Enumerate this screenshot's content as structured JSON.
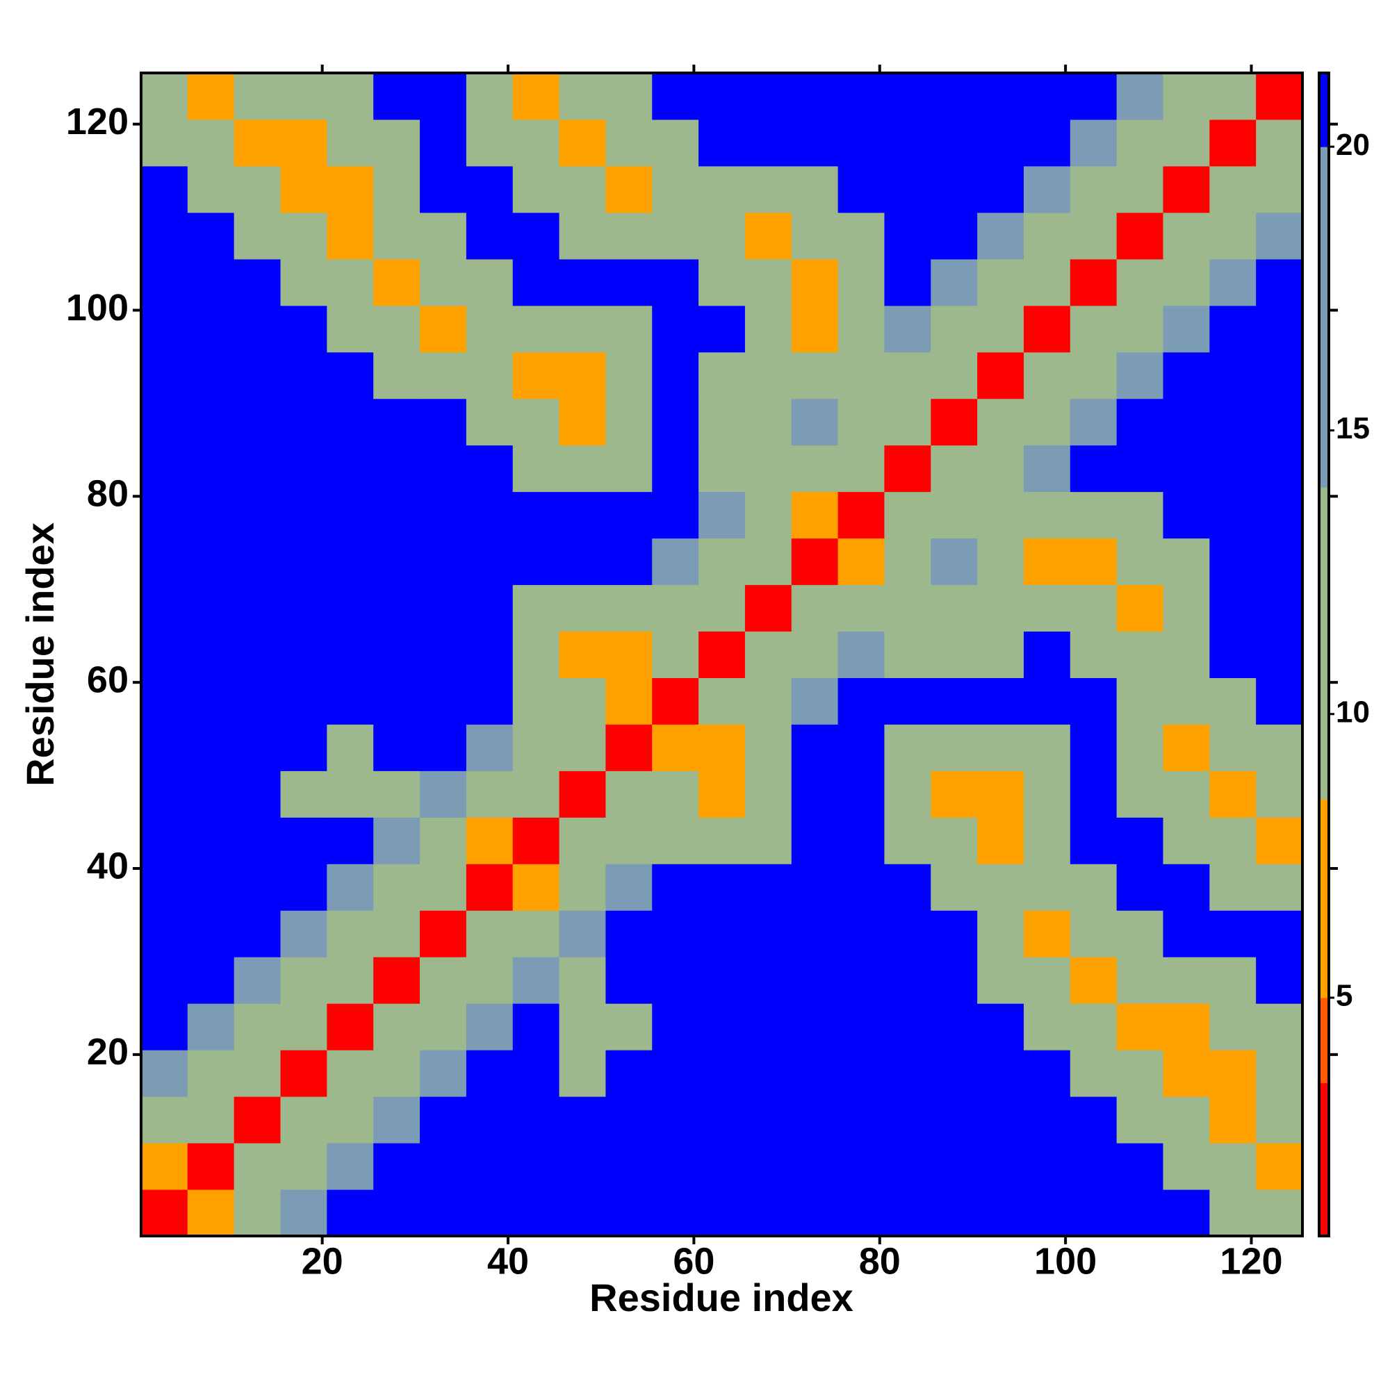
{
  "chart_data": {
    "type": "heatmap",
    "xlabel": "Residue index",
    "ylabel": "Residue index",
    "bins": [
      0.5,
      5.5,
      10.5,
      15.5,
      20.5,
      25.5,
      30.5,
      35.5,
      40.5,
      45.5,
      50.5,
      55.5,
      60.5,
      65.5,
      70.5,
      75.5,
      80.5,
      85.5,
      90.5,
      95.5,
      100.5,
      105.5,
      110.5,
      115.5,
      120.5,
      125.5
    ],
    "xlim": [
      0.5,
      125.5
    ],
    "ylim": [
      0.5,
      125.5
    ],
    "xticks": [
      20,
      40,
      60,
      80,
      100,
      120
    ],
    "yticks": [
      20,
      40,
      60,
      80,
      100,
      120
    ],
    "clim": [
      0.8,
      21.3
    ],
    "cticks": [
      5,
      10,
      15,
      20
    ],
    "color_stops": [
      {
        "value": 0.8,
        "color": "#ff0000"
      },
      {
        "value": 3.5,
        "color": "#ff5a00"
      },
      {
        "value": 5,
        "color": "#ffa200"
      },
      {
        "value": 8.5,
        "color": "#9db88c"
      },
      {
        "value": 14,
        "color": "#7c9bb4"
      },
      {
        "value": 20,
        "color": "#0000ff"
      }
    ],
    "values": [
      [
        2,
        6,
        13,
        17,
        21,
        21,
        21,
        21,
        21,
        21,
        21,
        21,
        21,
        21,
        21,
        21,
        21,
        21,
        21,
        21,
        21,
        21,
        21,
        12,
        12
      ],
      [
        6,
        2,
        9,
        13,
        17,
        21,
        21,
        21,
        21,
        21,
        21,
        21,
        21,
        21,
        21,
        21,
        21,
        21,
        21,
        21,
        21,
        21,
        12,
        12,
        6
      ],
      [
        13,
        9,
        2,
        9,
        13,
        17,
        21,
        21,
        21,
        21,
        21,
        21,
        21,
        21,
        21,
        21,
        21,
        21,
        21,
        21,
        21,
        12,
        12,
        6,
        12
      ],
      [
        17,
        13,
        9,
        2,
        9,
        13,
        17,
        21,
        21,
        13,
        21,
        21,
        21,
        21,
        21,
        21,
        21,
        21,
        21,
        21,
        12,
        12,
        6,
        6,
        12
      ],
      [
        21,
        17,
        13,
        9,
        2,
        9,
        13,
        17,
        21,
        13,
        13,
        21,
        21,
        21,
        21,
        21,
        21,
        21,
        21,
        12,
        12,
        6,
        6,
        12,
        12
      ],
      [
        21,
        21,
        17,
        13,
        9,
        2,
        9,
        13,
        17,
        13,
        21,
        21,
        21,
        21,
        21,
        21,
        21,
        21,
        12,
        12,
        6,
        12,
        12,
        12,
        21
      ],
      [
        21,
        21,
        21,
        17,
        13,
        9,
        2,
        9,
        13,
        17,
        21,
        21,
        21,
        21,
        21,
        21,
        21,
        21,
        12,
        6,
        12,
        12,
        21,
        21,
        21
      ],
      [
        21,
        21,
        21,
        21,
        17,
        13,
        9,
        2,
        6,
        13,
        17,
        21,
        21,
        21,
        21,
        21,
        21,
        12,
        12,
        12,
        12,
        21,
        21,
        12,
        12
      ],
      [
        21,
        21,
        21,
        21,
        21,
        17,
        13,
        6,
        2,
        9,
        13,
        12,
        12,
        12,
        21,
        21,
        12,
        12,
        6,
        12,
        21,
        21,
        12,
        12,
        6
      ],
      [
        21,
        21,
        21,
        13,
        13,
        13,
        17,
        13,
        9,
        2,
        9,
        13,
        6,
        12,
        21,
        21,
        12,
        6,
        6,
        12,
        21,
        12,
        12,
        6,
        12
      ],
      [
        21,
        21,
        21,
        21,
        13,
        21,
        21,
        17,
        13,
        9,
        2,
        6,
        6,
        12,
        21,
        21,
        12,
        12,
        12,
        12,
        21,
        12,
        6,
        12,
        12
      ],
      [
        21,
        21,
        21,
        21,
        21,
        21,
        21,
        21,
        12,
        13,
        6,
        2,
        9,
        13,
        17,
        21,
        21,
        21,
        21,
        21,
        21,
        12,
        12,
        12,
        21
      ],
      [
        21,
        21,
        21,
        21,
        21,
        21,
        21,
        21,
        12,
        6,
        6,
        9,
        2,
        9,
        13,
        17,
        12,
        12,
        12,
        21,
        12,
        12,
        12,
        21,
        21
      ],
      [
        21,
        21,
        21,
        21,
        21,
        21,
        21,
        21,
        12,
        12,
        12,
        13,
        9,
        2,
        9,
        13,
        12,
        12,
        12,
        12,
        12,
        6,
        12,
        21,
        21
      ],
      [
        21,
        21,
        21,
        21,
        21,
        21,
        21,
        21,
        21,
        21,
        21,
        17,
        13,
        9,
        2,
        6,
        13,
        17,
        12,
        6,
        6,
        12,
        12,
        21,
        21
      ],
      [
        21,
        21,
        21,
        21,
        21,
        21,
        21,
        21,
        21,
        21,
        21,
        21,
        17,
        13,
        6,
        2,
        9,
        13,
        12,
        12,
        12,
        12,
        21,
        21,
        21
      ],
      [
        21,
        21,
        21,
        21,
        21,
        21,
        21,
        21,
        12,
        12,
        12,
        21,
        12,
        12,
        13,
        9,
        2,
        9,
        13,
        17,
        21,
        21,
        21,
        21,
        21
      ],
      [
        21,
        21,
        21,
        21,
        21,
        21,
        21,
        12,
        12,
        6,
        12,
        21,
        12,
        12,
        17,
        13,
        9,
        2,
        9,
        13,
        17,
        21,
        21,
        21,
        21
      ],
      [
        21,
        21,
        21,
        21,
        21,
        12,
        12,
        12,
        6,
        6,
        12,
        21,
        12,
        12,
        12,
        12,
        13,
        9,
        2,
        9,
        13,
        17,
        21,
        21,
        21
      ],
      [
        21,
        21,
        21,
        21,
        12,
        12,
        6,
        12,
        12,
        12,
        12,
        21,
        21,
        12,
        6,
        12,
        17,
        13,
        9,
        2,
        9,
        13,
        17,
        21,
        21
      ],
      [
        21,
        21,
        21,
        12,
        12,
        6,
        12,
        12,
        21,
        21,
        21,
        21,
        12,
        12,
        6,
        12,
        21,
        17,
        13,
        9,
        2,
        9,
        13,
        17,
        21
      ],
      [
        21,
        21,
        12,
        12,
        6,
        12,
        12,
        21,
        21,
        12,
        12,
        12,
        12,
        6,
        12,
        12,
        21,
        21,
        17,
        13,
        9,
        2,
        9,
        13,
        17
      ],
      [
        21,
        12,
        12,
        6,
        6,
        12,
        21,
        21,
        12,
        12,
        6,
        12,
        12,
        12,
        12,
        21,
        21,
        21,
        21,
        17,
        13,
        9,
        2,
        9,
        13
      ],
      [
        12,
        12,
        6,
        6,
        12,
        12,
        21,
        12,
        12,
        6,
        12,
        12,
        21,
        21,
        21,
        21,
        21,
        21,
        21,
        21,
        17,
        13,
        9,
        2,
        9
      ],
      [
        12,
        6,
        12,
        12,
        12,
        21,
        21,
        12,
        6,
        12,
        12,
        21,
        21,
        21,
        21,
        21,
        21,
        21,
        21,
        21,
        21,
        17,
        13,
        9,
        2
      ]
    ]
  }
}
